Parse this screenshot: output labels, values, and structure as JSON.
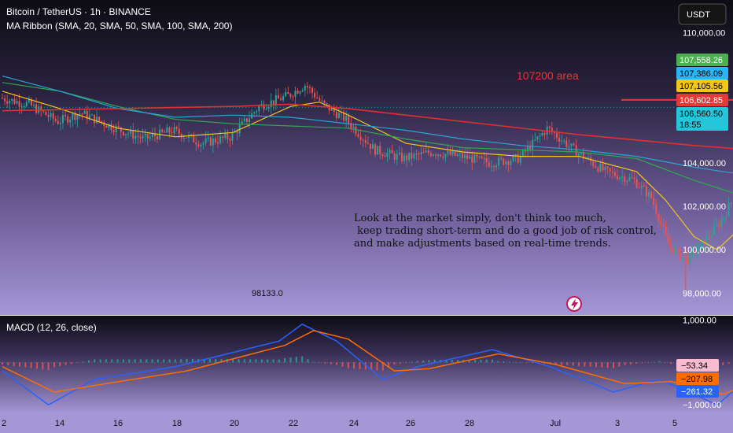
{
  "header": {
    "symbol_line": "Bitcoin / TetherUS · 1h · BINANCE",
    "indicator_line": "MA Ribbon (SMA, 20, SMA, 50, SMA, 100, SMA, 200)",
    "currency_button": "USDT"
  },
  "colors": {
    "sma20": "#f5c518",
    "sma50": "#2ea84f",
    "sma100": "#2aa5d6",
    "sma200": "#e03030",
    "macd_line": "#2962ff",
    "signal_line": "#ff6d00",
    "candle_up": "#26a69a",
    "candle_down": "#ef5350"
  },
  "annotations": {
    "area_label": "107200 area",
    "area_level": 106900,
    "low_label": "98133.0",
    "comment_lines": [
      "Look at the market simply, don't think too much,",
      " keep trading short-term and do a good job of risk control,",
      "and make adjustments based on real-time trends."
    ]
  },
  "price_labels": [
    {
      "value": "107,558.26",
      "color": "#4caf50",
      "text_color": "#ffffff",
      "price": 107558.26
    },
    {
      "value": "107,386.09",
      "color": "#29b6f6",
      "text_color": "#000000",
      "price": 107386.09
    },
    {
      "value": "107,105.56",
      "color": "#f5c518",
      "text_color": "#000000",
      "price": 107105.56
    },
    {
      "value": "106,602.85",
      "color": "#e53935",
      "text_color": "#ffffff",
      "price": 106602.85
    },
    {
      "value": "106,560.50",
      "color": "#26c6da",
      "text_color": "#000000",
      "price": 106560.5,
      "sub": "18:55"
    }
  ],
  "macd_labels": [
    {
      "value": "−53.34",
      "color": "#f8bbd0",
      "text_color": "#000000",
      "val": -53.34
    },
    {
      "value": "−207.98",
      "color": "#ff6d00",
      "text_color": "#000000",
      "val": -207.98
    },
    {
      "value": "−261.32",
      "color": "#2962ff",
      "text_color": "#ffffff",
      "val": -261.32
    }
  ],
  "chart_data": [
    {
      "type": "candlestick",
      "title": "Bitcoin / TetherUS · 1h · BINANCE",
      "ylim": [
        97000,
        111500
      ],
      "y_ticks": [
        {
          "value": 110000,
          "label": "110,000.00"
        },
        {
          "value": 104000,
          "label": "104,000.00"
        },
        {
          "value": 102000,
          "label": "102,000.00"
        },
        {
          "value": 100000,
          "label": "100,000.00"
        },
        {
          "value": 98000,
          "label": "98,000.00"
        }
      ],
      "x_ticks": [
        "2",
        "14",
        "16",
        "18",
        "20",
        "22",
        "24",
        "26",
        "28",
        "Jul",
        "3",
        "5"
      ],
      "price_path": [
        [
          0,
          107000
        ],
        [
          0.5,
          106700
        ],
        [
          1,
          105900
        ],
        [
          1.4,
          106300
        ],
        [
          2,
          105600
        ],
        [
          2.5,
          105100
        ],
        [
          3,
          105500
        ],
        [
          3.5,
          104900
        ],
        [
          4,
          105200
        ],
        [
          4.5,
          106600
        ],
        [
          5,
          107100
        ],
        [
          5.3,
          107600
        ],
        [
          5.6,
          106700
        ],
        [
          6,
          106000
        ],
        [
          6.5,
          104600
        ],
        [
          7,
          104200
        ],
        [
          7.5,
          104500
        ],
        [
          8,
          104300
        ],
        [
          8.5,
          104000
        ],
        [
          9,
          104200
        ],
        [
          9.5,
          105600
        ],
        [
          10,
          104500
        ],
        [
          10.5,
          103600
        ],
        [
          11,
          103200
        ],
        [
          11.3,
          102400
        ],
        [
          11.6,
          100200
        ],
        [
          11.9,
          99500
        ],
        [
          12.2,
          100300
        ],
        [
          12.5,
          101300
        ],
        [
          12.8,
          102700
        ],
        [
          13.1,
          104200
        ],
        [
          13.5,
          105000
        ],
        [
          14,
          106400
        ],
        [
          14.5,
          107100
        ],
        [
          15,
          107400
        ],
        [
          15.5,
          107000
        ],
        [
          16,
          106700
        ],
        [
          16.5,
          106900
        ],
        [
          17,
          106600
        ],
        [
          17.5,
          107000
        ],
        [
          17.8,
          107400
        ],
        [
          18.1,
          107300
        ],
        [
          18.5,
          106800
        ],
        [
          18.8,
          106550
        ]
      ],
      "low_value": 98133.0,
      "series": [
        {
          "name": "SMA 20",
          "values": [
            [
              0,
              107300
            ],
            [
              1,
              106500
            ],
            [
              2,
              105600
            ],
            [
              3,
              105200
            ],
            [
              4,
              105400
            ],
            [
              5,
              106600
            ],
            [
              5.5,
              106800
            ],
            [
              6,
              106200
            ],
            [
              7,
              104900
            ],
            [
              8,
              104500
            ],
            [
              9,
              104300
            ],
            [
              10,
              104300
            ],
            [
              11,
              103600
            ],
            [
              11.5,
              102300
            ],
            [
              12,
              100600
            ],
            [
              12.4,
              100000
            ],
            [
              13,
              101500
            ],
            [
              13.5,
              103200
            ],
            [
              14,
              105400
            ],
            [
              14.5,
              106500
            ],
            [
              15,
              107000
            ],
            [
              16,
              106900
            ],
            [
              17,
              106800
            ],
            [
              18,
              107200
            ],
            [
              18.8,
              106800
            ]
          ]
        },
        {
          "name": "SMA 50",
          "values": [
            [
              0,
              107700
            ],
            [
              1,
              107300
            ],
            [
              2,
              106600
            ],
            [
              3,
              106000
            ],
            [
              4,
              105800
            ],
            [
              5,
              105700
            ],
            [
              6,
              105600
            ],
            [
              7,
              105100
            ],
            [
              8,
              104700
            ],
            [
              9,
              104600
            ],
            [
              10,
              104500
            ],
            [
              11,
              104200
            ],
            [
              12,
              103200
            ],
            [
              12.7,
              102600
            ],
            [
              13,
              102700
            ],
            [
              14,
              104300
            ],
            [
              15,
              106100
            ],
            [
              16,
              106700
            ],
            [
              17,
              106800
            ],
            [
              18,
              106900
            ],
            [
              18.8,
              106800
            ]
          ]
        },
        {
          "name": "SMA 100",
          "values": [
            [
              0,
              108000
            ],
            [
              1,
              107300
            ],
            [
              2,
              106500
            ],
            [
              3,
              106100
            ],
            [
              4,
              106200
            ],
            [
              5,
              106100
            ],
            [
              6,
              105800
            ],
            [
              7,
              105500
            ],
            [
              8,
              105100
            ],
            [
              9,
              104800
            ],
            [
              10,
              104600
            ],
            [
              11,
              104300
            ],
            [
              12,
              103800
            ],
            [
              13,
              103400
            ],
            [
              14,
              103800
            ],
            [
              15,
              105200
            ],
            [
              16,
              106300
            ],
            [
              17,
              106800
            ],
            [
              18,
              107000
            ],
            [
              18.8,
              106800
            ]
          ]
        },
        {
          "name": "SMA 200",
          "values": [
            [
              0,
              106400
            ],
            [
              2,
              106500
            ],
            [
              4,
              106600
            ],
            [
              5,
              106700
            ],
            [
              6,
              106500
            ],
            [
              8,
              105900
            ],
            [
              10,
              105300
            ],
            [
              12,
              104800
            ],
            [
              13,
              104600
            ],
            [
              14,
              104500
            ],
            [
              15,
              104800
            ],
            [
              16,
              105100
            ],
            [
              17,
              105500
            ],
            [
              18,
              106100
            ],
            [
              18.8,
              106500
            ]
          ]
        }
      ]
    },
    {
      "type": "macd",
      "title": "MACD (12, 26, close)",
      "ylim": [
        -1200,
        1100
      ],
      "y_ticks": [
        {
          "value": 1000,
          "label": "1,000.00"
        },
        {
          "value": -1000,
          "label": "−1,000.00"
        }
      ],
      "series": [
        {
          "name": "MACD",
          "values": [
            [
              0,
              -200
            ],
            [
              0.8,
              -1000
            ],
            [
              1.6,
              -400
            ],
            [
              3,
              -100
            ],
            [
              4.8,
              500
            ],
            [
              5.2,
              900
            ],
            [
              5.8,
              500
            ],
            [
              6.6,
              -400
            ],
            [
              7.2,
              -100
            ],
            [
              8.5,
              300
            ],
            [
              9.5,
              -100
            ],
            [
              10.6,
              -700
            ],
            [
              11.4,
              -400
            ],
            [
              12.4,
              -1000
            ],
            [
              13,
              -300
            ],
            [
              13.4,
              350
            ],
            [
              14.4,
              1000
            ],
            [
              15.5,
              600
            ],
            [
              16.6,
              400
            ],
            [
              17.5,
              300
            ],
            [
              18.8,
              -260
            ]
          ]
        },
        {
          "name": "Signal",
          "values": [
            [
              0,
              -100
            ],
            [
              0.9,
              -700
            ],
            [
              1.8,
              -500
            ],
            [
              3.2,
              -200
            ],
            [
              4.9,
              400
            ],
            [
              5.4,
              750
            ],
            [
              6,
              550
            ],
            [
              6.8,
              -200
            ],
            [
              7.4,
              -150
            ],
            [
              8.6,
              200
            ],
            [
              9.6,
              -50
            ],
            [
              10.8,
              -500
            ],
            [
              11.6,
              -450
            ],
            [
              12.5,
              -750
            ],
            [
              13.2,
              -400
            ],
            [
              13.6,
              200
            ],
            [
              14.5,
              900
            ],
            [
              15.6,
              600
            ],
            [
              16.7,
              450
            ],
            [
              17.6,
              300
            ],
            [
              18.8,
              -210
            ]
          ]
        }
      ]
    }
  ]
}
